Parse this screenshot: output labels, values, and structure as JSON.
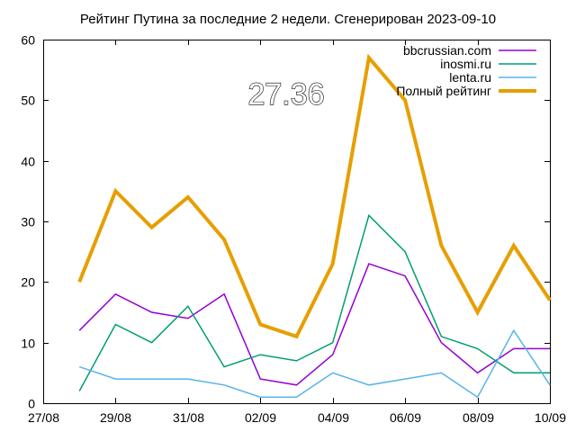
{
  "chart_data": {
    "type": "line",
    "title": "Рейтинг Путина за последние 2 недели. Сгенерирован 2023-09-10",
    "overlay_value": "27.36",
    "xlabel": "",
    "ylabel": "",
    "ylim": [
      0,
      60
    ],
    "yticks": [
      0,
      10,
      20,
      30,
      40,
      50,
      60
    ],
    "xlim": [
      "2023-08-27",
      "2023-09-10"
    ],
    "xticks": [
      "27/08",
      "29/08",
      "31/08",
      "02/09",
      "04/09",
      "06/09",
      "08/09",
      "10/09"
    ],
    "x": [
      "2023-08-28",
      "2023-08-29",
      "2023-08-30",
      "2023-08-31",
      "2023-09-01",
      "2023-09-02",
      "2023-09-03",
      "2023-09-04",
      "2023-09-05",
      "2023-09-06",
      "2023-09-07",
      "2023-09-08",
      "2023-09-09",
      "2023-09-10"
    ],
    "grid": false,
    "legend_position": "top-right",
    "series": [
      {
        "name": "bbcrussian.com",
        "color": "#9400d3",
        "width": 1.5,
        "values": [
          12,
          18,
          15,
          14,
          18,
          4,
          3,
          8,
          23,
          21,
          10,
          5,
          9,
          9
        ]
      },
      {
        "name": "inosmi.ru",
        "color": "#009e73",
        "width": 1.5,
        "values": [
          2,
          13,
          10,
          16,
          6,
          8,
          7,
          10,
          31,
          25,
          11,
          9,
          5,
          5
        ]
      },
      {
        "name": "lenta.ru",
        "color": "#56b4e9",
        "width": 1.5,
        "values": [
          6,
          4,
          4,
          4,
          3,
          1,
          1,
          5,
          3,
          4,
          5,
          1,
          12,
          3
        ]
      },
      {
        "name": "Полный рейтинг",
        "color": "#e69f00",
        "width": 4,
        "values": [
          20,
          35,
          29,
          34,
          27,
          13,
          11,
          23,
          57,
          50,
          26,
          15,
          26,
          17
        ]
      }
    ]
  }
}
